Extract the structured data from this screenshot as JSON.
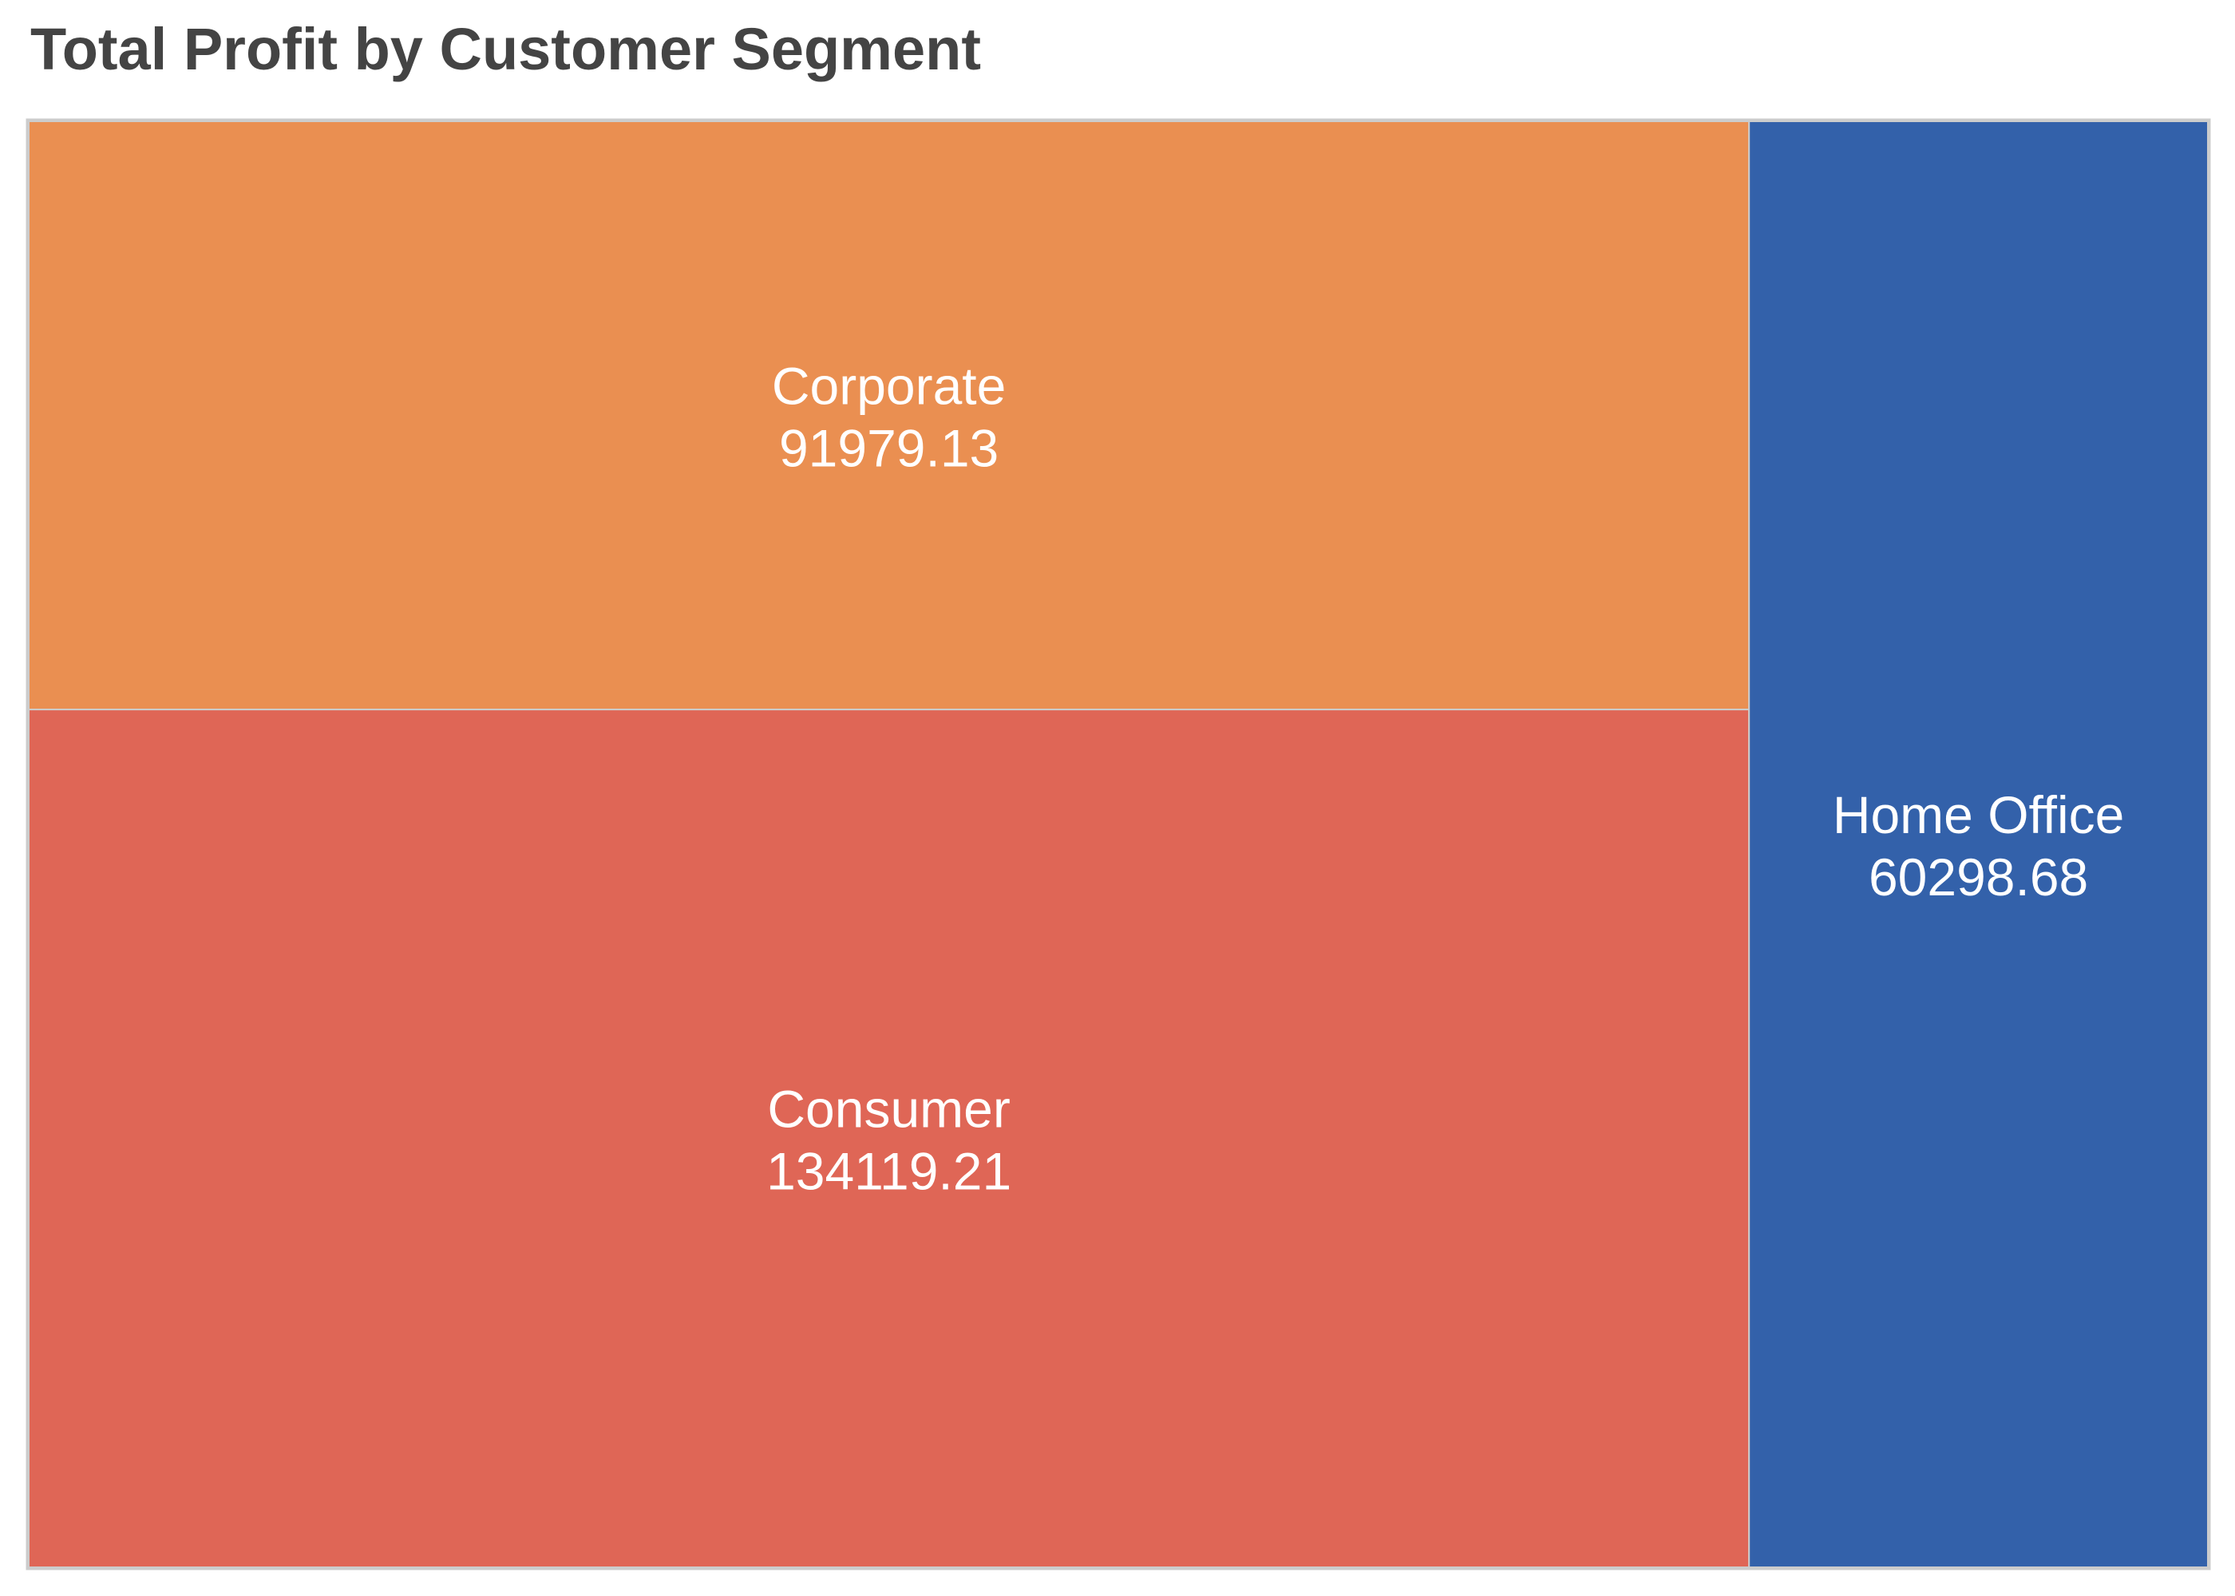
{
  "chart_data": {
    "type": "treemap",
    "title": "Total Profit by Customer Segment",
    "items": [
      {
        "label": "Consumer",
        "value_label": "134119.21",
        "value": 134119.21,
        "color": "#df6656"
      },
      {
        "label": "Corporate",
        "value_label": "91979.13",
        "value": 91979.13,
        "color": "#ea8f51"
      },
      {
        "label": "Home Office",
        "value_label": "60298.68",
        "value": 60298.68,
        "color": "#3361aa"
      }
    ],
    "label_color": "#ffffff",
    "border_color": "#cccccc"
  }
}
